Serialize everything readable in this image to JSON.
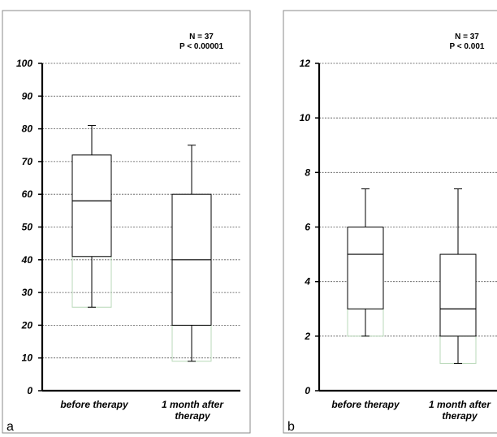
{
  "chart_data": [
    {
      "type": "box",
      "panel_label": "a",
      "annotation": {
        "n": "N = 37",
        "p": "P < 0.00001"
      },
      "categories": [
        [
          "before therapy"
        ],
        [
          "1 month after",
          "therapy"
        ]
      ],
      "ylim": [
        0,
        100
      ],
      "yticks": [
        0,
        10,
        20,
        30,
        40,
        50,
        60,
        70,
        80,
        90,
        100
      ],
      "grid": true,
      "boxes": [
        {
          "whisker_low": 25.5,
          "q1": 41,
          "median": 58,
          "q3": 72,
          "whisker_high": 81
        },
        {
          "whisker_low": 9,
          "q1": 20,
          "median": 40,
          "q3": 60,
          "whisker_high": 75
        }
      ]
    },
    {
      "type": "box",
      "panel_label": "b",
      "annotation": {
        "n": "N = 37",
        "p": "P < 0.001"
      },
      "categories": [
        [
          "before therapy"
        ],
        [
          "1 month after",
          "therapy"
        ]
      ],
      "ylim": [
        0,
        12
      ],
      "yticks": [
        0,
        2,
        4,
        6,
        8,
        10,
        12
      ],
      "grid": true,
      "boxes": [
        {
          "whisker_low": 2,
          "q1": 3,
          "median": 5,
          "q3": 6,
          "whisker_high": 7.4
        },
        {
          "whisker_low": 1,
          "q1": 2,
          "median": 3,
          "q3": 5,
          "whisker_high": 7.4
        }
      ]
    }
  ]
}
